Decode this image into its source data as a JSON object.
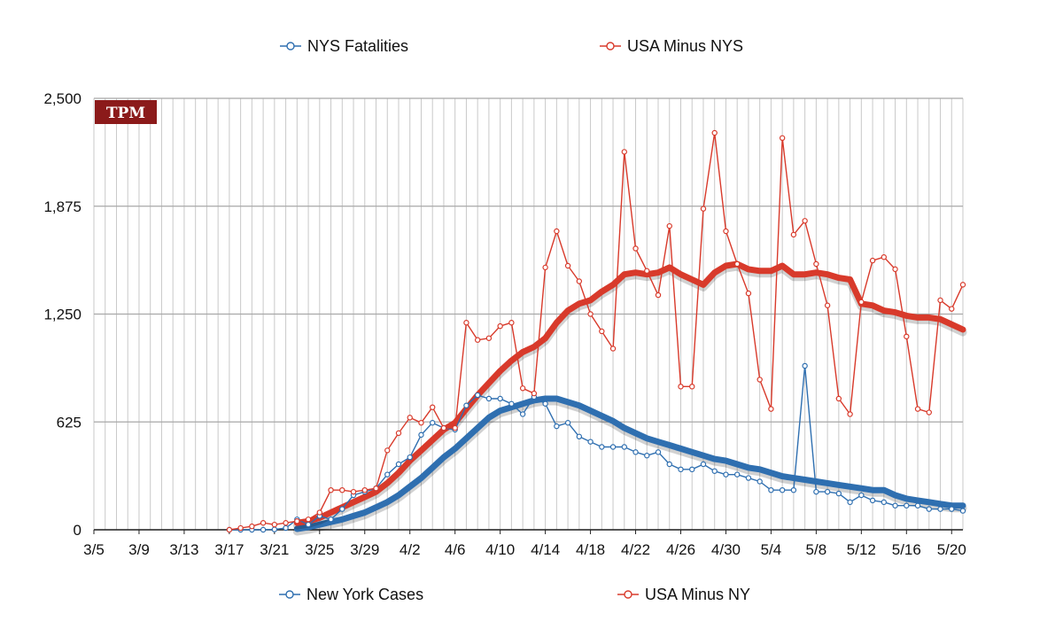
{
  "chart_data": {
    "type": "line",
    "title": "",
    "xlabel": "",
    "ylabel": "",
    "badge": "TPM",
    "x": [
      "3/5",
      "3/6",
      "3/7",
      "3/8",
      "3/9",
      "3/10",
      "3/11",
      "3/12",
      "3/13",
      "3/14",
      "3/15",
      "3/16",
      "3/17",
      "3/18",
      "3/19",
      "3/20",
      "3/21",
      "3/22",
      "3/23",
      "3/24",
      "3/25",
      "3/26",
      "3/27",
      "3/28",
      "3/29",
      "3/30",
      "3/31",
      "4/1",
      "4/2",
      "4/3",
      "4/4",
      "4/5",
      "4/6",
      "4/7",
      "4/8",
      "4/9",
      "4/10",
      "4/11",
      "4/12",
      "4/13",
      "4/14",
      "4/15",
      "4/16",
      "4/17",
      "4/18",
      "4/19",
      "4/20",
      "4/21",
      "4/22",
      "4/23",
      "4/24",
      "4/25",
      "4/26",
      "4/27",
      "4/28",
      "4/29",
      "4/30",
      "5/1",
      "5/2",
      "5/3",
      "5/4",
      "5/5",
      "5/6",
      "5/7",
      "5/8",
      "5/9",
      "5/10",
      "5/11",
      "5/12",
      "5/13",
      "5/14",
      "5/15",
      "5/16",
      "5/17",
      "5/18",
      "5/19",
      "5/20",
      "5/21"
    ],
    "x_tick_labels": [
      "3/5",
      "3/9",
      "3/13",
      "3/17",
      "3/21",
      "3/25",
      "3/29",
      "4/2",
      "4/6",
      "4/10",
      "4/14",
      "4/18",
      "4/22",
      "4/26",
      "4/30",
      "5/4",
      "5/8",
      "5/12",
      "5/16",
      "5/20"
    ],
    "y_tick_labels": [
      "0",
      "625",
      "1,250",
      "1,875",
      "2,500"
    ],
    "y_ticks": [
      0,
      625,
      1250,
      1875,
      2500
    ],
    "ylim": [
      0,
      2500
    ],
    "grid": true,
    "series": [
      {
        "name": "NYS Fatalities",
        "kind": "daily",
        "color": "#2f6fb0",
        "values": [
          null,
          null,
          null,
          null,
          null,
          null,
          null,
          null,
          null,
          null,
          null,
          null,
          0,
          0,
          0,
          0,
          2,
          10,
          60,
          30,
          80,
          60,
          120,
          200,
          220,
          240,
          320,
          380,
          420,
          550,
          620,
          590,
          580,
          720,
          780,
          760,
          760,
          730,
          670,
          770,
          730,
          600,
          620,
          540,
          510,
          480,
          480,
          480,
          450,
          430,
          450,
          380,
          350,
          350,
          380,
          340,
          320,
          320,
          300,
          280,
          230,
          230,
          230,
          950,
          220,
          220,
          210,
          160,
          200,
          170,
          160,
          140,
          140,
          140,
          120,
          120,
          120,
          110
        ]
      },
      {
        "name": "USA Minus NYS",
        "kind": "daily",
        "color": "#d83a2b",
        "values": [
          null,
          null,
          null,
          null,
          null,
          null,
          null,
          null,
          null,
          null,
          null,
          null,
          0,
          10,
          20,
          40,
          30,
          40,
          50,
          60,
          100,
          230,
          230,
          220,
          230,
          240,
          460,
          560,
          650,
          620,
          710,
          590,
          590,
          1200,
          1100,
          1110,
          1180,
          1200,
          820,
          790,
          1520,
          1730,
          1530,
          1440,
          1250,
          1150,
          1050,
          2190,
          1630,
          1500,
          1360,
          1760,
          830,
          830,
          1860,
          2300,
          1730,
          1540,
          1370,
          870,
          700,
          2270,
          1710,
          1790,
          1540,
          1300,
          760,
          670,
          1320,
          1560,
          1580,
          1510,
          1120,
          700,
          680,
          1330,
          1280,
          1420
        ]
      },
      {
        "name": "New York Cases",
        "kind": "average",
        "color": "#2f6fb0",
        "values": [
          null,
          null,
          null,
          null,
          null,
          null,
          null,
          null,
          null,
          null,
          null,
          null,
          null,
          null,
          null,
          null,
          null,
          null,
          5,
          15,
          30,
          45,
          60,
          80,
          100,
          130,
          160,
          200,
          250,
          300,
          360,
          420,
          470,
          530,
          590,
          650,
          690,
          710,
          730,
          750,
          760,
          760,
          740,
          720,
          690,
          660,
          630,
          590,
          560,
          530,
          510,
          490,
          470,
          450,
          430,
          410,
          400,
          380,
          360,
          350,
          330,
          310,
          300,
          290,
          280,
          270,
          260,
          250,
          240,
          230,
          230,
          200,
          180,
          170,
          160,
          150,
          140,
          140
        ]
      },
      {
        "name": "USA Minus NY",
        "kind": "average",
        "color": "#d83a2b",
        "values": [
          null,
          null,
          null,
          null,
          null,
          null,
          null,
          null,
          null,
          null,
          null,
          null,
          null,
          null,
          null,
          null,
          null,
          null,
          40,
          50,
          70,
          100,
          130,
          160,
          190,
          220,
          270,
          330,
          400,
          460,
          520,
          580,
          620,
          700,
          780,
          850,
          920,
          980,
          1030,
          1060,
          1110,
          1200,
          1270,
          1310,
          1330,
          1380,
          1420,
          1480,
          1490,
          1480,
          1490,
          1520,
          1480,
          1450,
          1420,
          1490,
          1530,
          1540,
          1510,
          1500,
          1500,
          1530,
          1480,
          1480,
          1490,
          1480,
          1460,
          1450,
          1310,
          1300,
          1270,
          1260,
          1240,
          1230,
          1230,
          1220,
          1190,
          1160
        ]
      }
    ],
    "legend_top": [
      {
        "label": "NYS Fatalities",
        "color": "#2f6fb0"
      },
      {
        "label": "USA Minus NYS",
        "color": "#d83a2b"
      }
    ],
    "legend_bottom": [
      {
        "label": "New York Cases",
        "color": "#2f6fb0"
      },
      {
        "label": "USA Minus NY",
        "color": "#d83a2b"
      }
    ]
  }
}
